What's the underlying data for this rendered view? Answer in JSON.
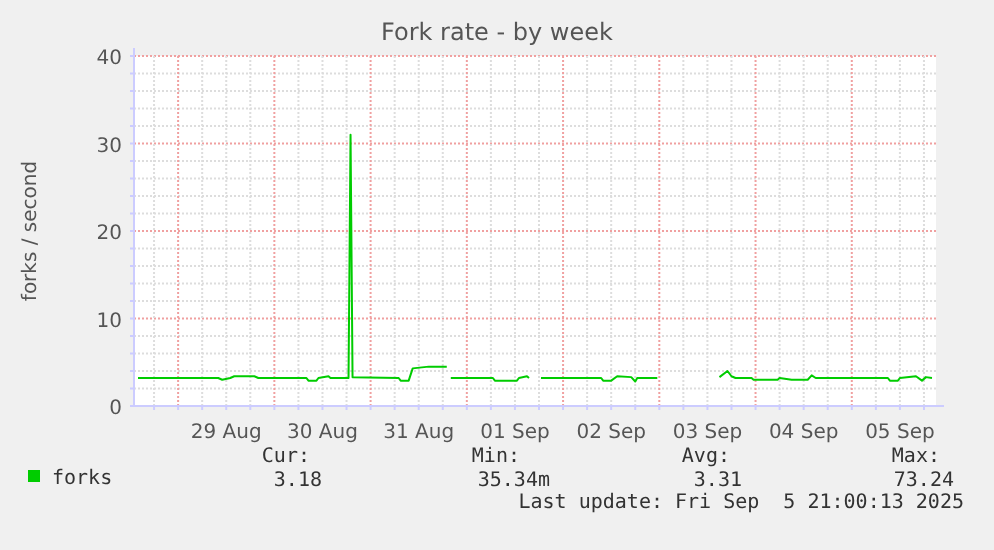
{
  "chart_data": {
    "type": "line",
    "title": "Fork rate - by week",
    "ylabel": "forks / second",
    "xlim": [
      "2025-08-28T13:00",
      "2025-09-05T21:00"
    ],
    "ylim": [
      0,
      40
    ],
    "yticks": [
      0,
      {
        "value": 2,
        "label": null
      },
      {
        "value": 4,
        "label": null
      },
      {
        "value": 6,
        "label": null
      },
      {
        "value": 8,
        "label": null
      },
      10,
      {
        "value": 12,
        "label": null
      },
      {
        "value": 14,
        "label": null
      },
      {
        "value": 16,
        "label": null
      },
      {
        "value": 18,
        "label": null
      },
      20,
      {
        "value": 22,
        "label": null
      },
      {
        "value": 24,
        "label": null
      },
      {
        "value": 26,
        "label": null
      },
      {
        "value": 28,
        "label": null
      },
      30,
      {
        "value": 32,
        "label": null
      },
      {
        "value": 34,
        "label": null
      },
      {
        "value": 36,
        "label": null
      },
      {
        "value": 38,
        "label": null
      },
      40
    ],
    "xticks": [
      {
        "value": "2025-08-28T18:00",
        "label": null
      },
      {
        "value": "2025-08-29T00:00",
        "label": null
      },
      {
        "value": "2025-08-29T06:00",
        "label": null
      },
      {
        "value": "2025-08-29T12:00",
        "label": "29 Aug"
      },
      {
        "value": "2025-08-29T18:00",
        "label": null
      },
      {
        "value": "2025-08-30T00:00",
        "label": null
      },
      {
        "value": "2025-08-30T06:00",
        "label": null
      },
      {
        "value": "2025-08-30T12:00",
        "label": "30 Aug"
      },
      {
        "value": "2025-08-30T18:00",
        "label": null
      },
      {
        "value": "2025-08-31T00:00",
        "label": null
      },
      {
        "value": "2025-08-31T06:00",
        "label": null
      },
      {
        "value": "2025-08-31T12:00",
        "label": "31 Aug"
      },
      {
        "value": "2025-08-31T18:00",
        "label": null
      },
      {
        "value": "2025-09-01T00:00",
        "label": null
      },
      {
        "value": "2025-09-01T06:00",
        "label": null
      },
      {
        "value": "2025-09-01T12:00",
        "label": "01 Sep"
      },
      {
        "value": "2025-09-01T18:00",
        "label": null
      },
      {
        "value": "2025-09-02T00:00",
        "label": null
      },
      {
        "value": "2025-09-02T06:00",
        "label": null
      },
      {
        "value": "2025-09-02T12:00",
        "label": "02 Sep"
      },
      {
        "value": "2025-09-02T18:00",
        "label": null
      },
      {
        "value": "2025-09-03T00:00",
        "label": null
      },
      {
        "value": "2025-09-03T06:00",
        "label": null
      },
      {
        "value": "2025-09-03T12:00",
        "label": "03 Sep"
      },
      {
        "value": "2025-09-03T18:00",
        "label": null
      },
      {
        "value": "2025-09-04T00:00",
        "label": null
      },
      {
        "value": "2025-09-04T06:00",
        "label": null
      },
      {
        "value": "2025-09-04T12:00",
        "label": "04 Sep"
      },
      {
        "value": "2025-09-04T18:00",
        "label": null
      },
      {
        "value": "2025-09-05T00:00",
        "label": null
      },
      {
        "value": "2025-09-05T06:00",
        "label": null
      },
      {
        "value": "2025-09-05T12:00",
        "label": "05 Sep"
      },
      {
        "value": "2025-09-05T18:00",
        "label": null
      }
    ],
    "grid": true,
    "legend": "bottom",
    "marker": "none",
    "x": [
      "2025-08-28T14:00",
      "2025-08-29T10:00",
      "2025-08-29T11:00",
      "2025-08-29T13:00",
      "2025-08-29T14:00",
      "2025-08-29T19:00",
      "2025-08-29T20:00",
      "2025-08-30T08:00",
      "2025-08-30T08:30",
      "2025-08-30T10:30",
      "2025-08-30T11:00",
      "2025-08-30T13:30",
      "2025-08-30T14:00",
      "2025-08-30T18:30",
      "2025-08-30T19:00",
      "2025-08-30T19:30",
      "2025-08-31T07:00",
      "2025-08-31T07:30",
      "2025-08-31T09:30",
      "2025-08-31T10:30",
      "2025-08-31T14:30",
      "2025-08-31T19:00",
      "2025-08-31T19:30",
      "2025-08-31T20:00",
      "2025-09-01T06:30",
      "2025-09-01T07:00",
      "2025-09-01T12:30",
      "2025-09-01T13:00",
      "2025-09-01T15:00",
      "2025-09-01T15:30",
      "2025-09-01T16:30",
      "2025-09-01T18:30",
      "2025-09-02T09:30",
      "2025-09-02T10:00",
      "2025-09-02T12:00",
      "2025-09-02T13:30",
      "2025-09-02T17:00",
      "2025-09-02T18:00",
      "2025-09-02T18:30",
      "2025-09-02T23:30",
      "2025-09-03T00:30",
      "2025-09-03T15:00",
      "2025-09-03T17:00",
      "2025-09-03T18:00",
      "2025-09-03T19:00",
      "2025-09-03T23:00",
      "2025-09-03T23:30",
      "2025-09-04T05:30",
      "2025-09-04T06:00",
      "2025-09-04T09:00",
      "2025-09-04T13:00",
      "2025-09-04T14:00",
      "2025-09-04T15:00",
      "2025-09-05T09:00",
      "2025-09-05T09:30",
      "2025-09-05T11:30",
      "2025-09-05T12:00",
      "2025-09-05T16:00",
      "2025-09-05T17:30",
      "2025-09-05T18:30",
      "2025-09-05T20:00"
    ],
    "series": [
      {
        "name": "forks",
        "color": "#00cc00",
        "values": [
          3.2,
          3.2,
          3.0,
          3.2,
          3.4,
          3.4,
          3.2,
          3.2,
          2.9,
          2.9,
          3.2,
          3.4,
          3.2,
          3.2,
          31,
          3.3,
          3.2,
          2.9,
          2.9,
          4.3,
          4.5,
          4.5,
          null,
          3.2,
          3.2,
          2.9,
          2.9,
          3.2,
          3.4,
          3.2,
          null,
          3.2,
          3.2,
          2.9,
          2.9,
          3.4,
          3.3,
          2.8,
          3.2,
          3.2,
          null,
          3.3,
          4.0,
          3.4,
          3.2,
          3.2,
          3.0,
          3.0,
          3.2,
          3.0,
          3.0,
          3.5,
          3.2,
          3.2,
          2.9,
          2.9,
          3.2,
          3.4,
          2.9,
          3.3,
          3.2
        ]
      }
    ],
    "annotations": [
      "Cur:",
      "Min:",
      "Avg:",
      "Max:",
      "3.18",
      "35.34m",
      "3.31",
      "73.24",
      "Last update: Fri Sep  5 21:00:13 2025"
    ]
  }
}
